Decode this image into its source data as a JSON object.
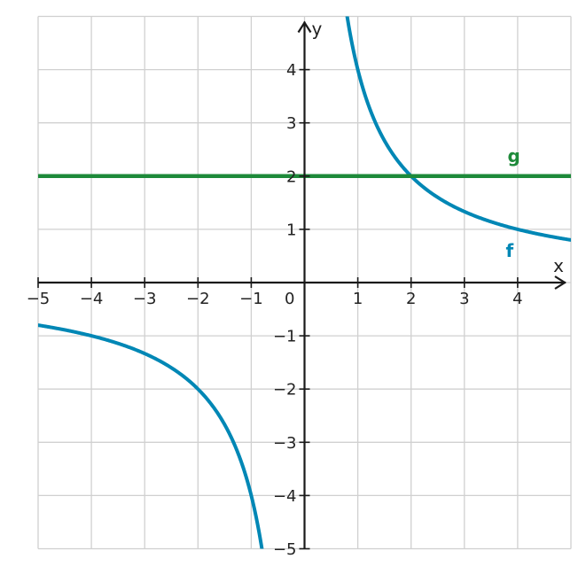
{
  "chart_data": {
    "type": "line",
    "xlim": [
      -5,
      5
    ],
    "ylim": [
      -5,
      5
    ],
    "grid": true,
    "xlabel": "x",
    "ylabel": "y",
    "origin_label": "0",
    "x_ticks": [
      -5,
      -4,
      -3,
      -2,
      -1,
      1,
      2,
      3,
      4
    ],
    "x_tick_labels": [
      "−5",
      "−4",
      "−3",
      "−2",
      "−1",
      "1",
      "2",
      "3",
      "4"
    ],
    "y_ticks": [
      -5,
      -4,
      -3,
      -2,
      -1,
      1,
      2,
      3,
      4
    ],
    "y_tick_labels": [
      "−5",
      "−4",
      "−3",
      "−2",
      "−1",
      "1",
      "2",
      "3",
      "4"
    ],
    "series": [
      {
        "name": "f",
        "color": "#0087b5",
        "function": "4/x",
        "x": [
          -5,
          -4,
          -3,
          -2,
          -1.5,
          -1,
          -0.8,
          0.8,
          1,
          1.5,
          2,
          3,
          4,
          5
        ],
        "y": [
          -0.8,
          -1,
          -1.333,
          -2,
          -2.667,
          -4,
          -5,
          5,
          4,
          2.667,
          2,
          1.333,
          1,
          0.8
        ]
      },
      {
        "name": "g",
        "color": "#1e8a3a",
        "function": "2",
        "x": [
          -5,
          5
        ],
        "y": [
          2,
          2
        ]
      }
    ]
  }
}
